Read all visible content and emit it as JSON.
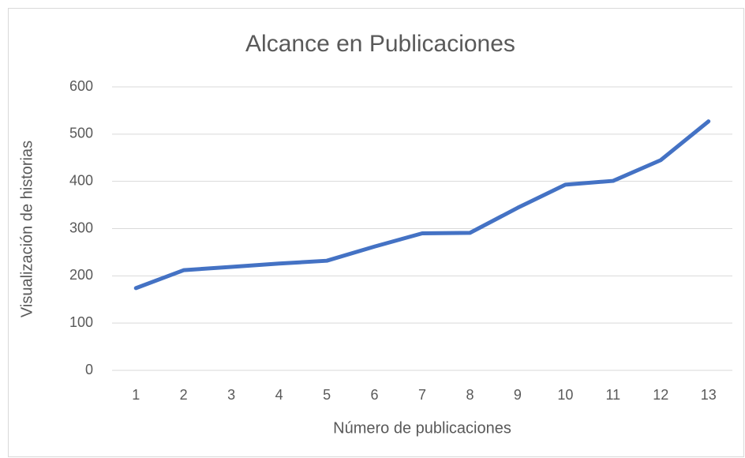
{
  "chart_data": {
    "type": "line",
    "title": "Alcance en Publicaciones",
    "x_label": "Número de publicaciones",
    "y_label": "Visualización de historias",
    "categories": [
      "1",
      "2",
      "3",
      "4",
      "5",
      "6",
      "7",
      "8",
      "9",
      "10",
      "11",
      "12",
      "13"
    ],
    "series": [
      {
        "name": "Visualización de historias",
        "color": "#4472c4",
        "values": [
          174,
          212,
          219,
          226,
          232,
          262,
          290,
          291,
          344,
          393,
          401,
          445,
          527
        ]
      }
    ],
    "ylim": [
      0,
      600
    ],
    "yticks": [
      0,
      100,
      200,
      300,
      400,
      500,
      600
    ],
    "grid": true
  }
}
